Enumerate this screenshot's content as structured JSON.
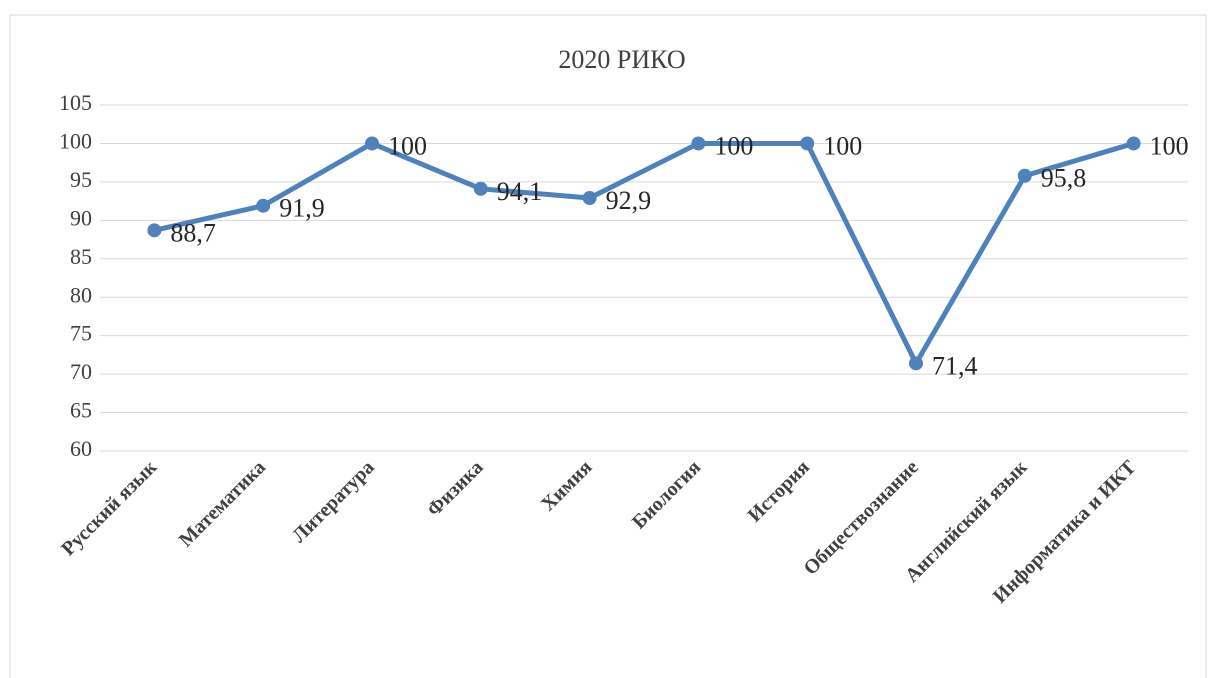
{
  "chart_data": {
    "type": "line",
    "title": "2020 РИКО",
    "categories": [
      "Русский язык",
      "Математика",
      "Литература",
      "Физика",
      "Химия",
      "Биология",
      "История",
      "Обществознание",
      "Английский язык",
      "Информатика и ИКТ"
    ],
    "series": [
      {
        "name": "2020 РИКО",
        "color": "#4f81bd",
        "values": [
          88.7,
          91.9,
          100,
          94.1,
          92.9,
          100,
          100,
          71.4,
          95.8,
          100
        ],
        "value_labels": [
          "88,7",
          "91,9",
          "100",
          "94,1",
          "92,9",
          "100",
          "100",
          "71,4",
          "95,8",
          "100"
        ]
      }
    ],
    "ylim": [
      60,
      105
    ],
    "yticks": [
      60,
      65,
      70,
      75,
      80,
      85,
      90,
      95,
      100,
      105
    ],
    "grid": true
  }
}
